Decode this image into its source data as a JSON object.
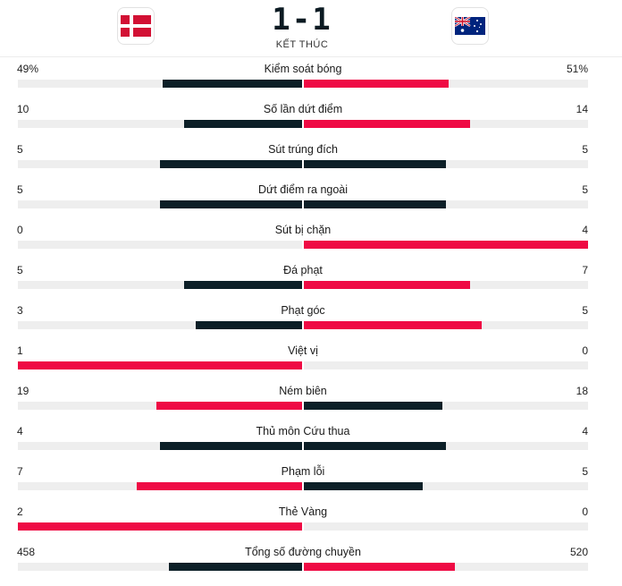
{
  "match": {
    "score": "1-1",
    "status": "KẾT THÚC",
    "home_flag": "denmark-flag",
    "away_flag": "australia-flag"
  },
  "colors": {
    "leader": "#ef0a44",
    "trailer": "#0c1f27",
    "track": "#eeeeee"
  },
  "stats": [
    {
      "label": "Kiểm soát bóng",
      "home": "49%",
      "away": "51%",
      "home_val": 49,
      "away_val": 51
    },
    {
      "label": "Số lần dứt điểm",
      "home": "10",
      "away": "14",
      "home_val": 10,
      "away_val": 14
    },
    {
      "label": "Sút trúng đích",
      "home": "5",
      "away": "5",
      "home_val": 5,
      "away_val": 5
    },
    {
      "label": "Dứt điểm ra ngoài",
      "home": "5",
      "away": "5",
      "home_val": 5,
      "away_val": 5
    },
    {
      "label": "Sút bị chặn",
      "home": "0",
      "away": "4",
      "home_val": 0,
      "away_val": 4
    },
    {
      "label": "Đá phạt",
      "home": "5",
      "away": "7",
      "home_val": 5,
      "away_val": 7
    },
    {
      "label": "Phạt góc",
      "home": "3",
      "away": "5",
      "home_val": 3,
      "away_val": 5
    },
    {
      "label": "Việt vị",
      "home": "1",
      "away": "0",
      "home_val": 1,
      "away_val": 0
    },
    {
      "label": "Ném biên",
      "home": "19",
      "away": "18",
      "home_val": 19,
      "away_val": 18
    },
    {
      "label": "Thủ môn Cứu thua",
      "home": "4",
      "away": "4",
      "home_val": 4,
      "away_val": 4
    },
    {
      "label": "Phạm lỗi",
      "home": "7",
      "away": "5",
      "home_val": 7,
      "away_val": 5
    },
    {
      "label": "Thẻ Vàng",
      "home": "2",
      "away": "0",
      "home_val": 2,
      "away_val": 0
    },
    {
      "label": "Tổng số đường chuyền",
      "home": "458",
      "away": "520",
      "home_val": 458,
      "away_val": 520
    }
  ]
}
